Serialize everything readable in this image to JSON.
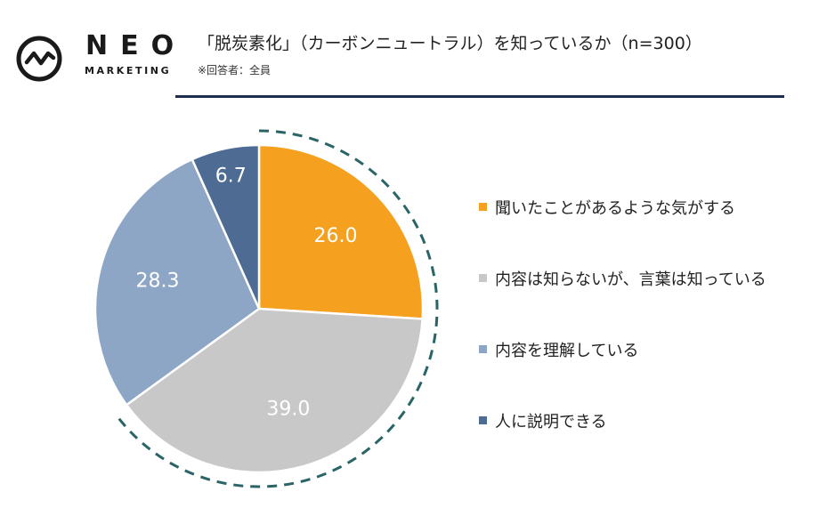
{
  "logo": {
    "word": "NEO",
    "sub": "MARKETING"
  },
  "header": {
    "title": "「脱炭素化」（カーボンニュートラル）を知っているか（n=300）",
    "subtitle": "※回答者：全員"
  },
  "chart_data": {
    "type": "pie",
    "categories": [
      "聞いたことがあるような気がする",
      "内容は知らないが、言葉は知っている",
      "内容を理解している",
      "人に説明できる"
    ],
    "values": [
      26.0,
      39.0,
      28.3,
      6.7
    ],
    "value_labels": [
      "26.0",
      "39.0",
      "28.3",
      "6.7"
    ],
    "colors": [
      "#f5a01e",
      "#c8c8c8",
      "#8ea6c6",
      "#4e6b94"
    ],
    "start": "12 o'clock, clockwise",
    "legend_position": "right",
    "highlight_ring": {
      "color": "#2a6466",
      "style": "dashed",
      "from_category": 0,
      "to_category": 1
    }
  }
}
